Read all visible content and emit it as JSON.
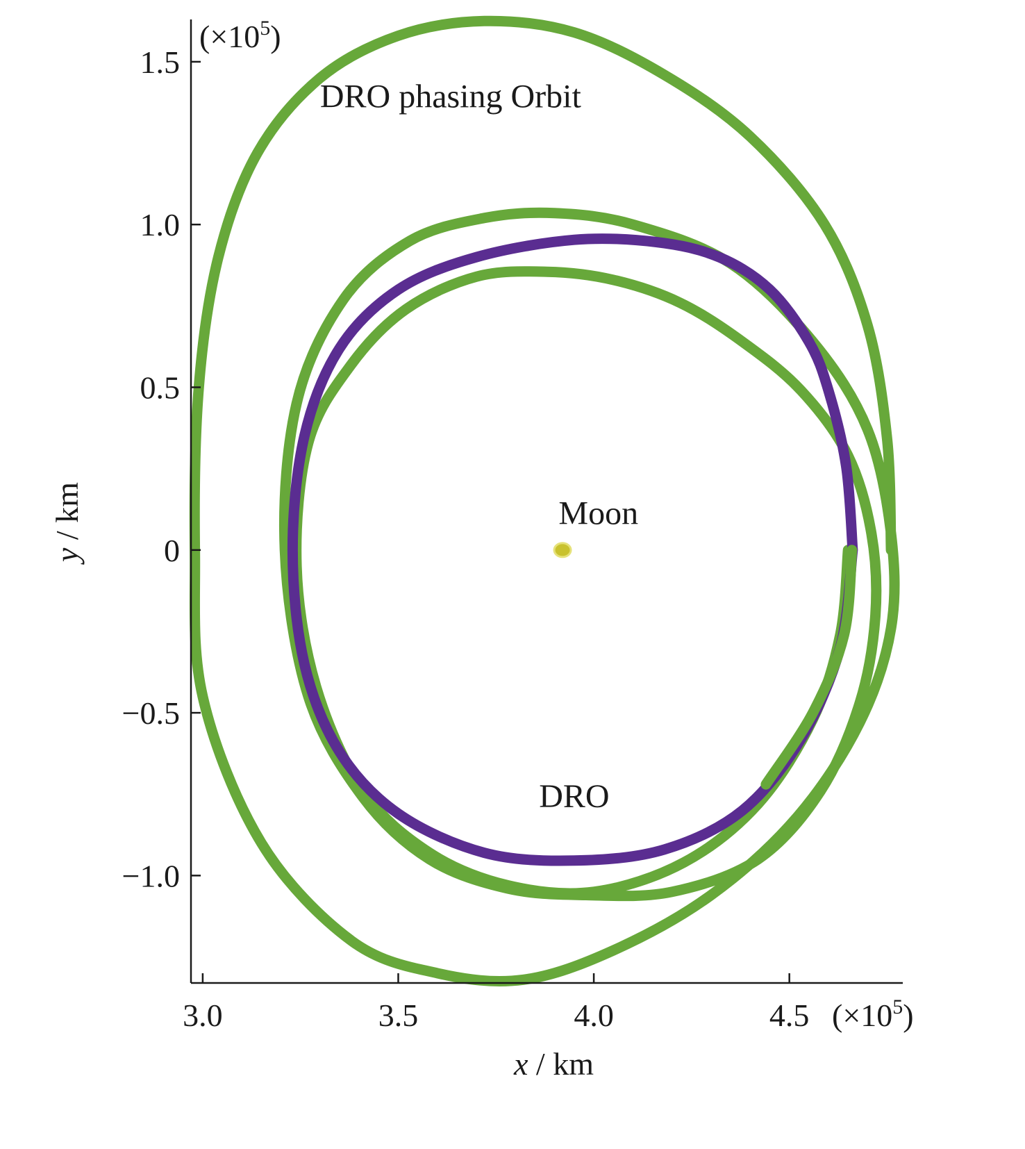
{
  "chart_data": {
    "type": "line",
    "xlabel": {
      "var": "x",
      "unit": " / km"
    },
    "ylabel": {
      "var": "y",
      "unit": " / km"
    },
    "x_scale_note": {
      "open": "(×10",
      "exp": "5",
      "close": ")"
    },
    "y_scale_note": {
      "open": "(×10",
      "exp": "5",
      "close": ")"
    },
    "xlim": [
      2.97,
      4.79
    ],
    "ylim": [
      -1.33,
      1.63
    ],
    "xticks": [
      {
        "value": 3.0,
        "label": "3.0"
      },
      {
        "value": 3.5,
        "label": "3.5"
      },
      {
        "value": 4.0,
        "label": "4.0"
      },
      {
        "value": 4.5,
        "label": "4.5"
      }
    ],
    "yticks": [
      {
        "value": 1.5,
        "label": "1.5"
      },
      {
        "value": 1.0,
        "label": "1.0"
      },
      {
        "value": 0.5,
        "label": "0.5"
      },
      {
        "value": 0,
        "label": "0"
      },
      {
        "value": -0.5,
        "label": "−0.5"
      },
      {
        "value": -1.0,
        "label": "−1.0"
      }
    ],
    "grid": false,
    "legend": "none",
    "colors": {
      "dro": "#5a2d91",
      "phasing": "#67a83a",
      "moon": "#c9c22e"
    },
    "series": [
      {
        "id": "dro",
        "color": "#5a2d91",
        "points": [
          [
            4.662,
            0.0
          ],
          [
            4.645,
            0.26
          ],
          [
            4.6,
            0.49
          ],
          [
            4.55,
            0.64
          ],
          [
            4.45,
            0.8
          ],
          [
            4.32,
            0.9
          ],
          [
            4.16,
            0.946
          ],
          [
            3.95,
            0.953
          ],
          [
            3.7,
            0.9
          ],
          [
            3.5,
            0.8
          ],
          [
            3.35,
            0.62
          ],
          [
            3.26,
            0.35
          ],
          [
            3.23,
            0.0
          ],
          [
            3.26,
            -0.35
          ],
          [
            3.35,
            -0.62
          ],
          [
            3.5,
            -0.81
          ],
          [
            3.72,
            -0.93
          ],
          [
            3.95,
            -0.954
          ],
          [
            4.18,
            -0.92
          ],
          [
            4.38,
            -0.8
          ],
          [
            4.53,
            -0.58
          ],
          [
            4.63,
            -0.3
          ],
          [
            4.662,
            0.0
          ]
        ]
      },
      {
        "id": "phasing",
        "color": "#67a83a",
        "points": [
          [
            4.65,
            0.0
          ],
          [
            4.63,
            -0.26
          ],
          [
            4.56,
            -0.52
          ],
          [
            4.42,
            -0.78
          ],
          [
            4.23,
            -0.96
          ],
          [
            4.0,
            -1.05
          ],
          [
            3.78,
            -1.03
          ],
          [
            3.58,
            -0.93
          ],
          [
            3.41,
            -0.74
          ],
          [
            3.29,
            -0.42
          ],
          [
            3.24,
            -0.05
          ],
          [
            3.27,
            0.33
          ],
          [
            3.38,
            0.57
          ],
          [
            3.52,
            0.74
          ],
          [
            3.7,
            0.84
          ],
          [
            3.88,
            0.855
          ],
          [
            4.05,
            0.83
          ],
          [
            4.22,
            0.76
          ],
          [
            4.38,
            0.64
          ],
          [
            4.53,
            0.49
          ],
          [
            4.65,
            0.29
          ],
          [
            4.71,
            0.05
          ],
          [
            4.72,
            -0.2
          ],
          [
            4.68,
            -0.47
          ],
          [
            4.58,
            -0.74
          ],
          [
            4.42,
            -0.95
          ],
          [
            4.2,
            -1.05
          ],
          [
            3.98,
            -1.06
          ],
          [
            3.78,
            -1.04
          ],
          [
            3.58,
            -0.95
          ],
          [
            3.41,
            -0.76
          ],
          [
            3.27,
            -0.45
          ],
          [
            3.21,
            0.0
          ],
          [
            3.24,
            0.45
          ],
          [
            3.36,
            0.77
          ],
          [
            3.53,
            0.95
          ],
          [
            3.72,
            1.02
          ],
          [
            3.9,
            1.035
          ],
          [
            4.1,
            1.0
          ],
          [
            4.35,
            0.88
          ],
          [
            4.56,
            0.64
          ],
          [
            4.7,
            0.37
          ],
          [
            4.76,
            0.05
          ],
          [
            4.76,
            -0.24
          ],
          [
            4.68,
            -0.53
          ],
          [
            4.52,
            -0.82
          ],
          [
            4.3,
            -1.06
          ],
          [
            4.05,
            -1.23
          ],
          [
            3.82,
            -1.32
          ],
          [
            3.6,
            -1.3
          ],
          [
            3.38,
            -1.2
          ],
          [
            3.15,
            -0.9
          ],
          [
            3.0,
            -0.45
          ],
          [
            2.98,
            0.0
          ],
          [
            2.99,
            0.5
          ],
          [
            3.04,
            0.9
          ],
          [
            3.14,
            1.22
          ],
          [
            3.3,
            1.45
          ],
          [
            3.5,
            1.58
          ],
          [
            3.72,
            1.625
          ],
          [
            3.95,
            1.59
          ],
          [
            4.18,
            1.46
          ],
          [
            4.4,
            1.27
          ],
          [
            4.59,
            1.0
          ],
          [
            4.7,
            0.69
          ],
          [
            4.75,
            0.34
          ],
          [
            4.76,
            0.0
          ]
        ]
      }
    ],
    "moon_point": {
      "x": 3.92,
      "y": 0.0
    },
    "annotations": [
      {
        "id": "phasing-label",
        "text": "DRO phasing Orbit",
        "x": 3.3,
        "y": 1.36
      },
      {
        "id": "moon-label",
        "text": "Moon",
        "x": 3.91,
        "y": 0.08
      },
      {
        "id": "dro-label",
        "text": "DRO",
        "x": 3.86,
        "y": -0.79
      }
    ]
  }
}
